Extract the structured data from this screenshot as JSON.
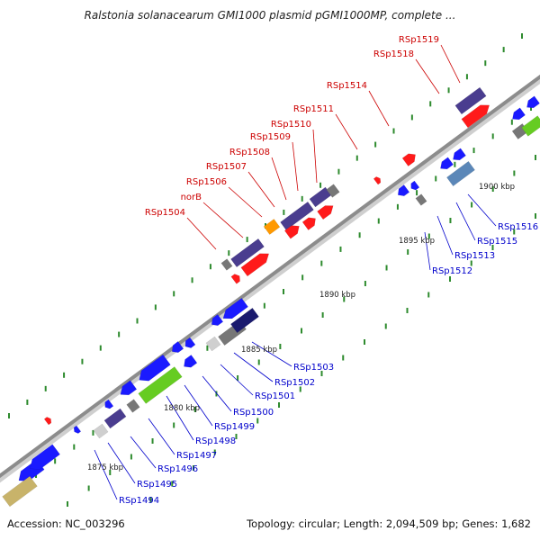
{
  "title": "Ralstonia solanacearum GMI1000 plasmid pGMI1000MP, complete ...",
  "footer": {
    "accession": "Accession: NC_003296",
    "summary": "Topology: circular; Length: 2,094,509 bp; Genes: 1,682"
  },
  "colors": {
    "backbone": "#8c8c8c",
    "tick": "#2e8b2e",
    "forward_label": "#cc0000",
    "reverse_label": "#0000cc",
    "scale_label": "#222222"
  },
  "scale": {
    "unit": "kbp",
    "labels": [
      "1875 kbp",
      "1880 kbp",
      "1885 kbp",
      "1890 kbp",
      "1895 kbp",
      "1900 kbp"
    ]
  },
  "labels_forward": [
    "RSp1504",
    "norB",
    "RSp1506",
    "RSp1507",
    "RSp1508",
    "RSp1509",
    "RSp1510",
    "RSp1511",
    "RSp1514",
    "RSp1518",
    "RSp1519"
  ],
  "labels_reverse": [
    "RSp1494",
    "RSp1495",
    "RSp1496",
    "RSp1497",
    "RSp1498",
    "RSp1499",
    "RSp1500",
    "RSp1501",
    "RSp1502",
    "RSp1503",
    "RSp1512",
    "RSp1513",
    "RSp1515",
    "RSp1516"
  ]
}
